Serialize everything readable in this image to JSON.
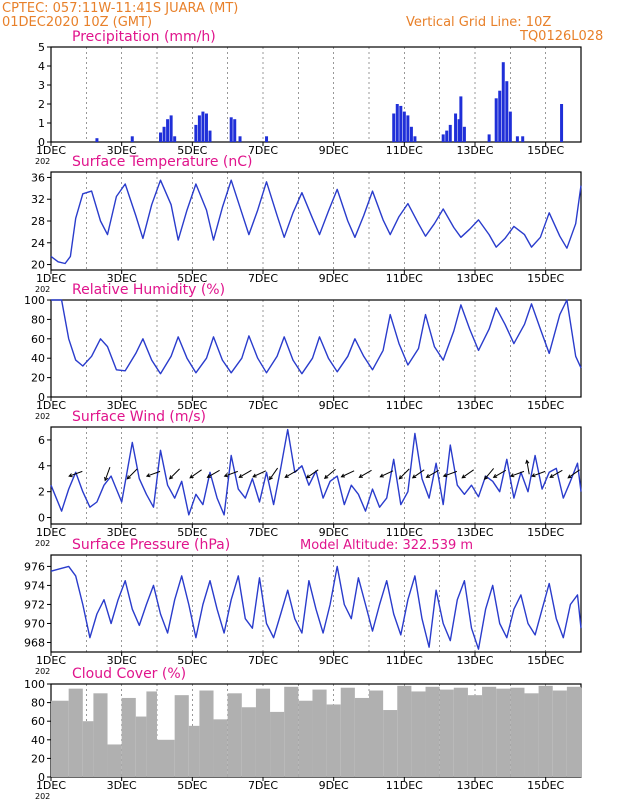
{
  "header": {
    "line1_left": "CPTEC:  057:11W-11:41S  JUARA (MT)",
    "line2_left": "01DEC2020 10Z (GMT)",
    "line1_right": "Vertical Grid Line: 10Z",
    "line2_right": "TQ0126L028",
    "model_altitude": "Model Altitude: 322.539 m"
  },
  "colors": {
    "header": "#e8802a",
    "title": "#e0148c",
    "line": "#2a3ccc",
    "bar": "#1f2fd8",
    "cloud": "#b0b0b0",
    "arrow": "#000000"
  },
  "x_axis": {
    "tick_labels": [
      "1DEC",
      "3DEC",
      "5DEC",
      "7DEC",
      "9DEC",
      "11DEC",
      "13DEC",
      "15DEC"
    ],
    "tick_days": [
      0,
      2,
      4,
      6,
      8,
      10,
      12,
      14
    ],
    "day_range": [
      0,
      15
    ],
    "year_fragment": "202"
  },
  "chart_data": [
    {
      "type": "bar",
      "title": "Precipitation (mm/h)",
      "ylim": [
        0,
        5
      ],
      "yticks": [
        0,
        1,
        2,
        3,
        4,
        5
      ],
      "days": [
        1.3,
        2.3,
        3.1,
        3.2,
        3.3,
        3.4,
        3.5,
        4.1,
        4.2,
        4.3,
        4.4,
        4.5,
        5.1,
        5.2,
        5.35,
        6.1,
        9.7,
        9.8,
        9.9,
        10.0,
        10.1,
        10.2,
        10.3,
        11.1,
        11.2,
        11.3,
        11.45,
        11.55,
        11.6,
        11.7,
        12.4,
        12.6,
        12.7,
        12.8,
        12.9,
        13.0,
        13.2,
        13.35,
        14.45
      ],
      "values": [
        0.2,
        0.3,
        0.5,
        0.8,
        1.2,
        1.4,
        0.3,
        0.9,
        1.4,
        1.6,
        1.5,
        0.6,
        1.3,
        1.2,
        0.3,
        0.3,
        1.5,
        2.0,
        1.9,
        1.6,
        1.4,
        0.8,
        0.3,
        0.4,
        0.6,
        0.9,
        1.5,
        1.2,
        2.4,
        0.8,
        0.4,
        2.3,
        2.7,
        4.2,
        3.2,
        1.6,
        0.3,
        0.3,
        2.0
      ]
    },
    {
      "type": "line",
      "title": "Surface Temperature (nC)",
      "ylim": [
        19,
        37
      ],
      "yticks": [
        20,
        24,
        28,
        32,
        36
      ],
      "days": [
        0,
        0.2,
        0.4,
        0.55,
        0.7,
        0.9,
        1.15,
        1.4,
        1.6,
        1.85,
        2.1,
        2.4,
        2.6,
        2.85,
        3.1,
        3.4,
        3.6,
        3.85,
        4.1,
        4.4,
        4.6,
        4.85,
        5.1,
        5.4,
        5.6,
        5.85,
        6.1,
        6.4,
        6.6,
        6.85,
        7.1,
        7.4,
        7.6,
        7.85,
        8.1,
        8.4,
        8.6,
        8.85,
        9.1,
        9.4,
        9.6,
        9.85,
        10.1,
        10.4,
        10.6,
        10.85,
        11.1,
        11.4,
        11.6,
        11.85,
        12.1,
        12.4,
        12.6,
        12.85,
        13.1,
        13.4,
        13.6,
        13.85,
        14.1,
        14.4,
        14.6,
        14.85,
        15.0
      ],
      "values": [
        21.5,
        20.5,
        20.2,
        21.5,
        28.5,
        33.0,
        33.5,
        28.0,
        25.5,
        32.5,
        34.8,
        29.0,
        24.8,
        31.0,
        35.5,
        31.0,
        24.5,
        30.0,
        34.8,
        30.0,
        24.5,
        30.5,
        35.5,
        29.5,
        25.5,
        30.0,
        35.2,
        29.0,
        25.0,
        29.5,
        33.2,
        28.5,
        25.5,
        29.8,
        33.8,
        28.0,
        25.0,
        29.0,
        33.5,
        28.2,
        25.5,
        28.8,
        31.2,
        27.5,
        25.2,
        27.5,
        30.2,
        26.8,
        25.0,
        26.5,
        28.2,
        25.5,
        23.2,
        24.8,
        27.0,
        25.5,
        23.2,
        25.0,
        29.5,
        25.2,
        23.0,
        27.5,
        34.5
      ]
    },
    {
      "type": "line",
      "title": "Relative Humidity (%)",
      "ylim": [
        0,
        100
      ],
      "yticks": [
        0,
        20,
        40,
        60,
        80,
        100
      ],
      "days": [
        0,
        0.3,
        0.5,
        0.7,
        0.9,
        1.15,
        1.4,
        1.6,
        1.85,
        2.1,
        2.4,
        2.6,
        2.85,
        3.1,
        3.4,
        3.6,
        3.85,
        4.1,
        4.4,
        4.6,
        4.85,
        5.1,
        5.4,
        5.6,
        5.85,
        6.1,
        6.4,
        6.6,
        6.85,
        7.1,
        7.4,
        7.6,
        7.85,
        8.1,
        8.4,
        8.6,
        8.85,
        9.1,
        9.4,
        9.6,
        9.85,
        10.1,
        10.4,
        10.6,
        10.85,
        11.1,
        11.4,
        11.6,
        11.85,
        12.1,
        12.4,
        12.6,
        12.85,
        13.1,
        13.4,
        13.6,
        13.85,
        14.1,
        14.4,
        14.6,
        14.85,
        15.0
      ],
      "values": [
        100,
        100,
        60,
        38,
        32,
        42,
        60,
        52,
        28,
        27,
        45,
        60,
        38,
        24,
        42,
        62,
        40,
        25,
        40,
        62,
        38,
        25,
        40,
        63,
        40,
        25,
        42,
        62,
        38,
        24,
        40,
        62,
        40,
        26,
        42,
        60,
        42,
        28,
        48,
        85,
        55,
        33,
        50,
        85,
        52,
        38,
        68,
        95,
        70,
        48,
        70,
        92,
        75,
        55,
        75,
        96,
        70,
        45,
        85,
        100,
        42,
        30
      ]
    },
    {
      "type": "line",
      "title": "Surface Wind (m/s)",
      "ylim": [
        -0.5,
        7
      ],
      "yticks": [
        0,
        2,
        4,
        6
      ],
      "days": [
        0,
        0.3,
        0.5,
        0.7,
        0.9,
        1.1,
        1.3,
        1.5,
        1.7,
        1.85,
        2.0,
        2.3,
        2.5,
        2.7,
        2.9,
        3.1,
        3.3,
        3.5,
        3.7,
        3.9,
        4.1,
        4.3,
        4.5,
        4.7,
        4.9,
        5.1,
        5.3,
        5.5,
        5.7,
        5.9,
        6.1,
        6.3,
        6.5,
        6.7,
        6.9,
        7.1,
        7.3,
        7.5,
        7.7,
        7.9,
        8.1,
        8.3,
        8.5,
        8.7,
        8.9,
        9.1,
        9.3,
        9.5,
        9.7,
        9.9,
        10.1,
        10.3,
        10.5,
        10.7,
        10.9,
        11.1,
        11.3,
        11.5,
        11.7,
        11.9,
        12.1,
        12.3,
        12.5,
        12.7,
        12.9,
        13.1,
        13.3,
        13.5,
        13.7,
        13.9,
        14.1,
        14.3,
        14.5,
        14.7,
        14.9,
        15.0
      ],
      "values": [
        2.5,
        0.5,
        2.2,
        3.5,
        2.0,
        0.8,
        1.2,
        2.5,
        3.2,
        2.2,
        1.2,
        5.8,
        3.0,
        1.8,
        0.8,
        5.2,
        2.5,
        1.5,
        2.8,
        0.2,
        1.8,
        1.0,
        3.5,
        1.5,
        0.2,
        4.8,
        2.2,
        1.5,
        3.0,
        1.2,
        3.5,
        1.0,
        3.8,
        6.8,
        3.5,
        4.0,
        2.5,
        3.6,
        1.5,
        2.8,
        3.2,
        1.0,
        2.5,
        1.8,
        0.5,
        2.2,
        0.8,
        1.5,
        4.5,
        1.0,
        2.0,
        6.5,
        3.0,
        1.5,
        4.2,
        1.0,
        5.6,
        2.5,
        1.8,
        2.5,
        1.6,
        3.2,
        2.8,
        2.0,
        4.5,
        1.5,
        3.5,
        2.0,
        4.8,
        2.2,
        3.5,
        3.8,
        1.5,
        2.8,
        4.2,
        2.0
      ]
    },
    {
      "type": "line",
      "title": "Surface Pressure (hPa)",
      "ylim": [
        967,
        977.2
      ],
      "yticks": [
        968,
        970,
        972,
        974,
        976
      ],
      "days": [
        0,
        0.3,
        0.5,
        0.7,
        0.9,
        1.1,
        1.3,
        1.5,
        1.7,
        1.9,
        2.1,
        2.3,
        2.5,
        2.7,
        2.9,
        3.1,
        3.3,
        3.5,
        3.7,
        3.9,
        4.1,
        4.3,
        4.5,
        4.7,
        4.9,
        5.1,
        5.3,
        5.5,
        5.7,
        5.9,
        6.1,
        6.3,
        6.5,
        6.7,
        6.9,
        7.1,
        7.3,
        7.5,
        7.7,
        7.9,
        8.1,
        8.3,
        8.5,
        8.7,
        8.9,
        9.1,
        9.3,
        9.5,
        9.7,
        9.9,
        10.1,
        10.3,
        10.5,
        10.7,
        10.9,
        11.1,
        11.3,
        11.5,
        11.7,
        11.9,
        12.1,
        12.3,
        12.5,
        12.7,
        12.9,
        13.1,
        13.3,
        13.5,
        13.7,
        13.9,
        14.1,
        14.3,
        14.5,
        14.7,
        14.9,
        15.0
      ],
      "values": [
        975.5,
        975.8,
        976.0,
        975.0,
        972.0,
        968.5,
        971.0,
        972.5,
        970.0,
        972.5,
        974.5,
        971.5,
        969.8,
        972.0,
        974.0,
        971.0,
        969.0,
        972.5,
        975.0,
        972.0,
        968.5,
        972.0,
        974.5,
        971.5,
        969.0,
        972.5,
        975.0,
        970.5,
        969.5,
        974.8,
        970.0,
        968.5,
        971.0,
        973.5,
        970.5,
        969.0,
        974.5,
        971.5,
        969.0,
        972.0,
        976.0,
        972.0,
        970.5,
        974.8,
        972.0,
        969.2,
        972.0,
        974.5,
        971.0,
        968.8,
        972.5,
        975.0,
        970.5,
        967.5,
        973.5,
        970.0,
        968.2,
        972.5,
        974.5,
        969.5,
        967.3,
        971.5,
        974.0,
        970.0,
        968.5,
        971.5,
        973.0,
        970.0,
        968.8,
        971.5,
        974.2,
        970.5,
        968.5,
        972.0,
        973.0,
        969.5
      ]
    },
    {
      "type": "bar",
      "title": "Cloud Cover (%)",
      "ylim": [
        0,
        100
      ],
      "yticks": [
        0,
        20,
        40,
        60,
        80,
        100
      ],
      "days": [
        0,
        0.5,
        0.9,
        1.2,
        1.6,
        2.0,
        2.4,
        2.7,
        3.0,
        3.5,
        3.9,
        4.2,
        4.6,
        5.0,
        5.4,
        5.8,
        6.2,
        6.6,
        7.0,
        7.4,
        7.8,
        8.2,
        8.6,
        9.0,
        9.4,
        9.8,
        10.2,
        10.6,
        11.0,
        11.4,
        11.8,
        12.2,
        12.6,
        13.0,
        13.4,
        13.8,
        14.2,
        14.6,
        15.0
      ],
      "values": [
        82,
        95,
        60,
        90,
        35,
        85,
        65,
        92,
        40,
        88,
        55,
        93,
        62,
        90,
        75,
        95,
        70,
        97,
        82,
        94,
        78,
        96,
        85,
        93,
        72,
        98,
        92,
        97,
        94,
        96,
        88,
        97,
        95,
        96,
        90,
        98,
        93,
        97,
        96
      ]
    }
  ]
}
